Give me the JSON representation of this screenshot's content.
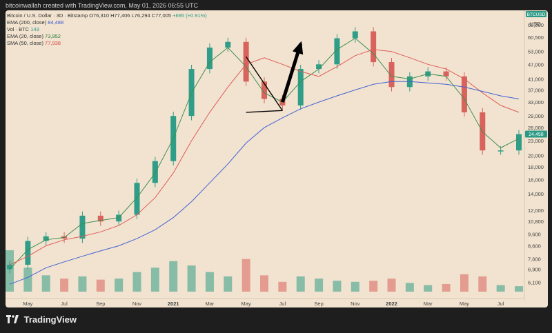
{
  "header": {
    "credit": "bitcoinwallah created with TradingView.com, May 01, 2026 06:55 UTC"
  },
  "legend": {
    "symbol": "Bitcoin / U.S. Dollar · 3D · Bitstamp",
    "ohlc": "O76,310  H77,406  L76,294  C77,005",
    "change": "+695 (+0.91%)",
    "ema200_label": "EMA (200, close)",
    "ema200_value": "84,488",
    "vol_label": "Vol · BTC",
    "vol_value": "143",
    "ema20_label": "EMA (20, close)",
    "ema20_value": "73,952",
    "sma50_label": "SMA (50, close)",
    "sma50_value": "77,938"
  },
  "badges": {
    "symbol": "BTCUSD",
    "currency": "USD",
    "last_price": "24,458"
  },
  "brand": {
    "name": "TradingView"
  },
  "colors": {
    "background": "#f1e3cf",
    "up": "#2f9d87",
    "down": "#d8625c",
    "ema200": "#4361d6",
    "ema20": "#3f8f52",
    "sma50": "#e05a5a"
  },
  "chart_data": {
    "type": "line",
    "title": "Bitcoin / U.S. Dollar · 3D · Bitstamp",
    "scale": "log",
    "ylim": [
      5600,
      74000
    ],
    "y_ticks": [
      "68,000",
      "60,500",
      "53,000",
      "47,000",
      "41,000",
      "37,000",
      "33,000",
      "29,000",
      "26,000",
      "23,000",
      "20,000",
      "18,000",
      "16,000",
      "14,000",
      "12,000",
      "10,800",
      "9,600",
      "8,600",
      "7,600",
      "6,900",
      "6,100"
    ],
    "x_ticks": [
      "May",
      "Jul",
      "Sep",
      "Nov",
      "2021",
      "Mar",
      "May",
      "Jul",
      "Sep",
      "Nov",
      "2022",
      "Mar",
      "May",
      "Jul"
    ],
    "x": [
      "2020-04",
      "2020-05",
      "2020-06",
      "2020-07",
      "2020-08",
      "2020-09",
      "2020-10",
      "2020-11",
      "2020-12",
      "2021-01",
      "2021-02",
      "2021-03",
      "2021-04",
      "2021-05",
      "2021-06",
      "2021-07",
      "2021-08",
      "2021-09",
      "2021-10",
      "2021-11",
      "2021-12",
      "2022-01",
      "2022-02",
      "2022-03",
      "2022-04",
      "2022-05",
      "2022-06",
      "2022-07",
      "2022-08"
    ],
    "series": [
      {
        "name": "BTCUSD",
        "values": [
          7200,
          9000,
          9400,
          9200,
          11400,
          10800,
          11500,
          15500,
          19000,
          29000,
          45000,
          55000,
          58000,
          40000,
          34000,
          32000,
          45000,
          47000,
          60000,
          64000,
          48000,
          38000,
          42000,
          44000,
          42000,
          30000,
          21000,
          21000,
          24458
        ]
      },
      {
        "name": "EMA (20, close)",
        "values": [
          6900,
          8300,
          9100,
          9300,
          10600,
          10900,
          11200,
          13500,
          17000,
          23500,
          36000,
          48000,
          55000,
          46000,
          36000,
          33000,
          40000,
          45000,
          54000,
          60000,
          52000,
          42000,
          41000,
          43000,
          42000,
          34000,
          25000,
          21500,
          23500
        ]
      },
      {
        "name": "SMA (50, close)",
        "values": [
          7200,
          7800,
          8600,
          9100,
          9400,
          9800,
          10400,
          11500,
          13500,
          17000,
          23000,
          30000,
          38000,
          47000,
          50000,
          47000,
          44000,
          42000,
          46000,
          51000,
          54000,
          53000,
          50000,
          47000,
          45000,
          41000,
          36000,
          32000,
          30000
        ]
      },
      {
        "name": "EMA (200, close)",
        "values": [
          6000,
          6400,
          7000,
          7400,
          7800,
          8200,
          8600,
          9200,
          10000,
          11200,
          13000,
          15500,
          18500,
          22500,
          26000,
          28500,
          31000,
          33000,
          35000,
          37000,
          39000,
          40000,
          40000,
          39500,
          39000,
          38000,
          36500,
          35000,
          34000
        ]
      }
    ],
    "volume": {
      "name": "Vol · BTC",
      "values": [
        38000,
        22000,
        15000,
        12000,
        14000,
        11000,
        12000,
        18000,
        22000,
        28000,
        24000,
        18000,
        14000,
        30000,
        15000,
        9000,
        14000,
        12000,
        10000,
        9000,
        10000,
        12000,
        8000,
        6000,
        7000,
        16000,
        14000,
        6000,
        5000
      ]
    },
    "annotations": [
      {
        "type": "line",
        "label": "",
        "points": [
          [
            "2021-05",
            50500
          ],
          [
            "2021-07",
            30500
          ]
        ]
      },
      {
        "type": "line",
        "label": "",
        "points": [
          [
            "2021-05",
            30000
          ],
          [
            "2021-07",
            30500
          ]
        ]
      },
      {
        "type": "arrow",
        "label": "",
        "points": [
          [
            "2021-07",
            33000
          ],
          [
            "2021-08",
            57000
          ]
        ]
      }
    ]
  }
}
